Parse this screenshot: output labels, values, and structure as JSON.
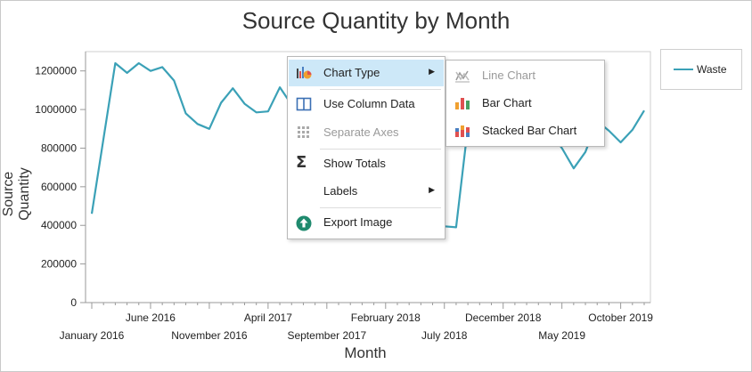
{
  "chart": {
    "title": "Source Quantity by Month",
    "ylabel": "Source Quantity",
    "xlabel": "Month"
  },
  "legend": {
    "label": "Waste",
    "color": "#3ba1b7"
  },
  "context_menu": {
    "items": [
      {
        "label": "Chart Type",
        "icon": "chart-type-icon",
        "submenu": true,
        "highlighted": true
      },
      {
        "label": "Use Column Data",
        "icon": "column-data-icon"
      },
      {
        "label": "Separate Axes",
        "icon": "separate-axes-icon",
        "disabled": true
      },
      {
        "label": "Show Totals",
        "icon": "sigma-icon"
      },
      {
        "label": "Labels",
        "icon": "",
        "submenu": true
      },
      {
        "label": "Export Image",
        "icon": "export-image-icon"
      }
    ]
  },
  "chart_type_submenu": {
    "items": [
      {
        "label": "Line Chart",
        "icon": "line-chart-icon",
        "disabled": true
      },
      {
        "label": "Bar Chart",
        "icon": "bar-chart-icon"
      },
      {
        "label": "Stacked Bar Chart",
        "icon": "stacked-bar-chart-icon"
      }
    ]
  },
  "chart_data": {
    "type": "line",
    "title": "Source Quantity by Month",
    "xlabel": "Month",
    "ylabel": "Source Quantity",
    "ylim": [
      0,
      1300000
    ],
    "yticks": [
      0,
      200000,
      400000,
      600000,
      800000,
      1000000,
      1200000
    ],
    "x_tick_labels": [
      "January 2016",
      "June 2016",
      "November 2016",
      "April 2017",
      "September 2017",
      "February 2018",
      "July 2018",
      "December 2018",
      "May 2019",
      "October 2019"
    ],
    "x_tick_label_indices": [
      0,
      5,
      10,
      15,
      20,
      25,
      30,
      35,
      40,
      45
    ],
    "legend_position": "top-right",
    "grid": false,
    "series": [
      {
        "name": "Waste",
        "color": "#3ba1b7",
        "x": [
          "2016-01",
          "2016-02",
          "2016-03",
          "2016-04",
          "2016-05",
          "2016-06",
          "2016-07",
          "2016-08",
          "2016-09",
          "2016-10",
          "2016-11",
          "2016-12",
          "2017-01",
          "2017-02",
          "2017-03",
          "2017-04",
          "2017-05",
          "2017-06",
          "2017-07",
          "2017-08",
          "2017-09",
          "2017-10",
          "2017-11",
          "2017-12",
          "2018-01",
          "2018-02",
          "2018-03",
          "2018-04",
          "2018-05",
          "2018-06",
          "2018-07",
          "2018-08",
          "2018-09",
          "2018-10",
          "2018-11",
          "2018-12",
          "2019-01",
          "2019-02",
          "2019-03",
          "2019-04",
          "2019-05",
          "2019-06",
          "2019-07",
          "2019-08",
          "2019-09",
          "2019-10",
          "2019-11",
          "2019-12"
        ],
        "values": [
          460000,
          850000,
          1240000,
          1190000,
          1240000,
          1200000,
          1220000,
          1150000,
          980000,
          925000,
          900000,
          1035000,
          1110000,
          1030000,
          985000,
          990000,
          1115000,
          1025000,
          1010000,
          1040000,
          1120000,
          1095000,
          1090000,
          1120000,
          1010000,
          1030000,
          975000,
          1020000,
          900000,
          600000,
          395000,
          390000,
          910000,
          825000,
          890000,
          920000,
          975000,
          990000,
          940000,
          880000,
          800000,
          695000,
          780000,
          940000,
          890000,
          830000,
          895000,
          995000
        ]
      }
    ]
  }
}
